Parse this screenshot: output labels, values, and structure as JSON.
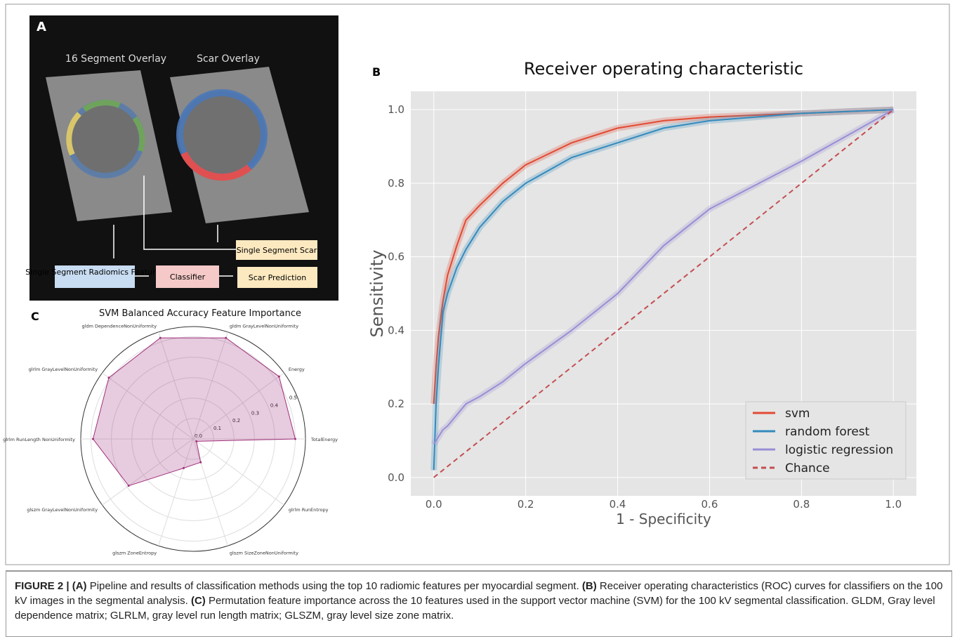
{
  "panels": {
    "a": "A",
    "b": "B",
    "c": "C"
  },
  "pipeline": {
    "overlay_left": "16 Segment Overlay",
    "overlay_right": "Scar Overlay",
    "segment_scar": "Single Segment Scar",
    "features": "Single Segment Radiomics Features",
    "classifier": "Classifier",
    "prediction": "Scar Prediction"
  },
  "chart_data": [
    {
      "type": "line",
      "title": "Receiver operating characteristic",
      "xlabel": "1 - Specificity",
      "ylabel": "Sensitivity",
      "x": [
        0,
        0.005,
        0.01,
        0.02,
        0.03,
        0.05,
        0.07,
        0.1,
        0.15,
        0.2,
        0.3,
        0.4,
        0.5,
        0.6,
        0.8,
        0.9,
        1.0
      ],
      "series": [
        {
          "name": "svm",
          "color": "#e24a33",
          "values": [
            0.2,
            0.3,
            0.38,
            0.48,
            0.55,
            0.63,
            0.7,
            0.74,
            0.8,
            0.85,
            0.91,
            0.95,
            0.97,
            0.98,
            0.99,
            0.995,
            1.0
          ]
        },
        {
          "name": "random forest",
          "color": "#348abd",
          "values": [
            0.02,
            0.2,
            0.3,
            0.45,
            0.5,
            0.57,
            0.62,
            0.68,
            0.75,
            0.8,
            0.87,
            0.91,
            0.95,
            0.97,
            0.99,
            0.995,
            1.0
          ]
        },
        {
          "name": "logistic regression",
          "color": "#988ed5",
          "values": [
            0.09,
            0.1,
            0.11,
            0.13,
            0.14,
            0.17,
            0.2,
            0.22,
            0.26,
            0.31,
            0.4,
            0.5,
            0.63,
            0.73,
            0.86,
            0.93,
            1.0
          ]
        },
        {
          "name": "Chance",
          "color": "#c44e52",
          "linestyle": "dashed",
          "values": [
            0,
            0.005,
            0.01,
            0.02,
            0.03,
            0.05,
            0.07,
            0.1,
            0.15,
            0.2,
            0.3,
            0.4,
            0.5,
            0.6,
            0.8,
            0.9,
            1.0
          ]
        }
      ],
      "xlim": [
        -0.05,
        1.05
      ],
      "ylim": [
        -0.05,
        1.05
      ],
      "xticks": [
        {
          "value": 0,
          "label": "0.0"
        },
        {
          "value": 0.2,
          "label": "0.2"
        },
        {
          "value": 0.4,
          "label": "0.4"
        },
        {
          "value": 0.6,
          "label": "0.6"
        },
        {
          "value": 0.8,
          "label": "0.8"
        },
        {
          "value": 1,
          "label": "1.0"
        }
      ],
      "yticks": [
        {
          "value": 0,
          "label": "0.0"
        },
        {
          "value": 0.2,
          "label": "0.2"
        },
        {
          "value": 0.4,
          "label": "0.4"
        },
        {
          "value": 0.6,
          "label": "0.6"
        },
        {
          "value": 0.8,
          "label": "0.8"
        },
        {
          "value": 1,
          "label": "1.0"
        }
      ],
      "grid": true,
      "legend": "lower right"
    },
    {
      "type": "radar",
      "title": "SVM Balanced Accuracy Feature Importance",
      "categories": [
        "TotalEnergy",
        "Energy",
        "gldm GrayLevelNonUniformity",
        "gldm DependenceNonUniformity",
        "glrlm GrayLevelNonUniformity",
        "glrlm RunLength NonUniformity",
        "glszm GrayLevelNonUniformity",
        "glszm ZoneEntropy",
        "glszm SizeZoneNonUniformity",
        "glrlm RunEntropy"
      ],
      "values": [
        0.5,
        0.52,
        0.52,
        0.52,
        0.51,
        0.49,
        0.39,
        0.15,
        0.12,
        0.02
      ],
      "color": "#a0307a",
      "rlim": [
        0,
        0.55
      ],
      "rticks": [
        {
          "value": 0,
          "label": "0.0"
        },
        0.1,
        0.2,
        0.3,
        0.4,
        0.5
      ]
    }
  ],
  "caption": [
    {
      "text": "FIGURE 2 | (A)",
      "bold": true
    },
    {
      "text": " Pipeline and results of classification methods using the top 10 radiomic features per myocardial segment. ",
      "bold": false
    },
    {
      "text": "(B)",
      "bold": true
    },
    {
      "text": " Receiver operating characteristics (ROC) curves for classifiers on the 100 kV images in the segmental analysis. ",
      "bold": false
    },
    {
      "text": "(C)",
      "bold": true
    },
    {
      "text": " Permutation feature importance across the 10 features used in the support vector machine (SVM) for the 100 kV segmental classification. GLDM, Gray level dependence matrix; GLRLM, gray level run length matrix; GLSZM, gray level size zone matrix.",
      "bold": false
    }
  ]
}
